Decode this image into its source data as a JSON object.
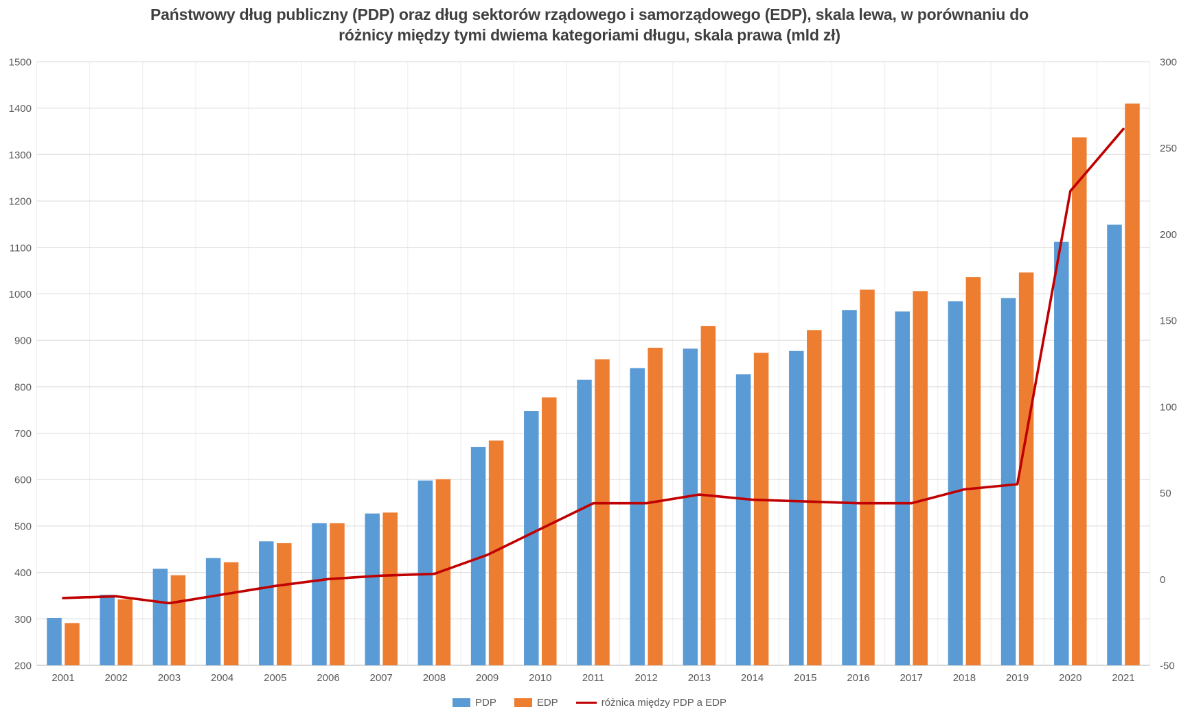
{
  "chart_data": {
    "type": "bar",
    "subtype": "grouped-bars-with-line-combo",
    "title": "Państwowy dług publiczny (PDP) oraz dług sektorów rządowego i samorządowego (EDP), skala lewa, w porównaniu do różnicy między tymi dwiema kategoriami długu, skala prawa (mld zł)",
    "title_lines": [
      "Państwowy dług publiczny (PDP) oraz dług sektorów rządowego i samorządowego (EDP), skala lewa, w porównaniu do",
      "różnicy między tymi dwiema kategoriami długu, skala prawa (mld zł)"
    ],
    "unit": "mld zł",
    "categories": [
      "2001",
      "2002",
      "2003",
      "2004",
      "2005",
      "2006",
      "2007",
      "2008",
      "2009",
      "2010",
      "2011",
      "2012",
      "2013",
      "2014",
      "2015",
      "2016",
      "2017",
      "2018",
      "2019",
      "2020",
      "2021"
    ],
    "series": [
      {
        "name": "PDP",
        "type": "bar",
        "axis": "left",
        "color": "#5B9BD5",
        "values": [
          302,
          352,
          408,
          431,
          467,
          506,
          527,
          598,
          670,
          748,
          815,
          840,
          882,
          827,
          877,
          965,
          962,
          984,
          991,
          1112,
          1149
        ]
      },
      {
        "name": "EDP",
        "type": "bar",
        "axis": "left",
        "color": "#ED7D31",
        "values": [
          291,
          342,
          394,
          422,
          463,
          506,
          529,
          601,
          684,
          777,
          859,
          884,
          931,
          873,
          922,
          1009,
          1006,
          1036,
          1046,
          1337,
          1410
        ]
      },
      {
        "name": "różnica między PDP a EDP",
        "type": "line",
        "axis": "right",
        "color": "#C00000",
        "values": [
          -11,
          -10,
          -14,
          -9,
          -4,
          0,
          2,
          3,
          14,
          29,
          44,
          44,
          49,
          46,
          45,
          44,
          44,
          52,
          55,
          225,
          261
        ]
      }
    ],
    "left_axis": {
      "min": 200,
      "max": 1500,
      "step": 100,
      "ticks": [
        "200",
        "300",
        "400",
        "500",
        "600",
        "700",
        "800",
        "900",
        "1000",
        "1100",
        "1200",
        "1300",
        "1400",
        "1500"
      ]
    },
    "right_axis": {
      "min": -50,
      "max": 300,
      "step": 50,
      "ticks": [
        "-50",
        "0",
        "50",
        "100",
        "150",
        "200",
        "250",
        "300"
      ]
    },
    "grid": {
      "horizontal": true,
      "vertical": true
    },
    "legend": {
      "position": "bottom",
      "items": [
        {
          "label": "PDP",
          "swatch": "rect",
          "color": "#5B9BD5"
        },
        {
          "label": "EDP",
          "swatch": "rect",
          "color": "#ED7D31"
        },
        {
          "label": "różnica między PDP a EDP",
          "swatch": "line",
          "color": "#C00000"
        }
      ]
    },
    "colors": {
      "title_text": "#404040",
      "axis_text": "#595959",
      "gridline_h": "#D9D9D9",
      "gridline_v": "#ECECEC",
      "axis_line": "#C0C0C0",
      "background": "#FFFFFF"
    }
  }
}
